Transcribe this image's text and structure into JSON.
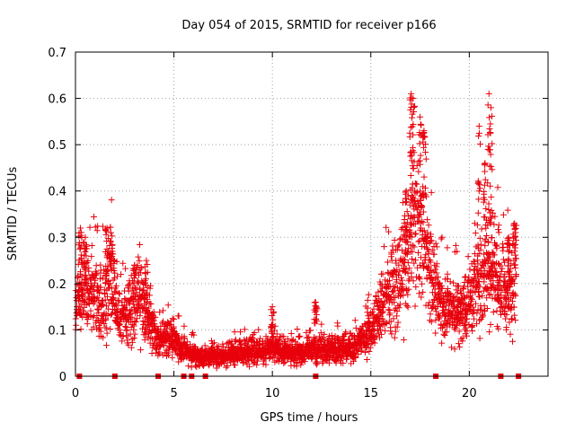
{
  "chart_data": {
    "type": "scatter",
    "title": "Day 054 of 2015, SRMTID for receiver p166",
    "xlabel": "GPS time / hours",
    "ylabel": "SRMTID / TECUs",
    "xlim": [
      0,
      24
    ],
    "ylim": [
      0,
      0.7
    ],
    "xticks": [
      0,
      5,
      10,
      15,
      20
    ],
    "xtick_labels": [
      "0",
      "5",
      "10",
      "15",
      "20"
    ],
    "yticks": [
      0,
      0.1,
      0.2,
      0.3,
      0.4,
      0.5,
      0.6,
      0.7
    ],
    "ytick_labels": [
      "0",
      "0.1",
      "0.2",
      "0.3",
      "0.4",
      "0.5",
      "0.6",
      "0.7"
    ],
    "grid": true,
    "marker": "+",
    "color": "#e8000b",
    "series": [
      {
        "name": "SRMTID",
        "profile": [
          [
            0.0,
            0.14
          ],
          [
            0.3,
            0.18
          ],
          [
            0.6,
            0.2
          ],
          [
            1.0,
            0.17
          ],
          [
            1.5,
            0.16
          ],
          [
            1.8,
            0.22
          ],
          [
            2.2,
            0.12
          ],
          [
            2.8,
            0.14
          ],
          [
            3.2,
            0.18
          ],
          [
            3.6,
            0.13
          ],
          [
            4.2,
            0.08
          ],
          [
            4.8,
            0.09
          ],
          [
            5.2,
            0.07
          ],
          [
            5.8,
            0.05
          ],
          [
            6.5,
            0.04
          ],
          [
            7.5,
            0.045
          ],
          [
            9.0,
            0.055
          ],
          [
            10.0,
            0.06
          ],
          [
            11.0,
            0.05
          ],
          [
            12.0,
            0.055
          ],
          [
            13.0,
            0.06
          ],
          [
            14.0,
            0.06
          ],
          [
            14.8,
            0.09
          ],
          [
            15.3,
            0.12
          ],
          [
            15.8,
            0.17
          ],
          [
            16.3,
            0.2
          ],
          [
            16.8,
            0.24
          ],
          [
            17.1,
            0.33
          ],
          [
            17.4,
            0.32
          ],
          [
            17.7,
            0.3
          ],
          [
            18.0,
            0.24
          ],
          [
            18.5,
            0.16
          ],
          [
            19.0,
            0.15
          ],
          [
            19.5,
            0.14
          ],
          [
            20.0,
            0.16
          ],
          [
            20.5,
            0.2
          ],
          [
            20.9,
            0.24
          ],
          [
            21.3,
            0.22
          ],
          [
            21.8,
            0.18
          ],
          [
            22.4,
            0.2
          ]
        ],
        "peaks": [
          [
            0.25,
            0.32
          ],
          [
            0.5,
            0.3
          ],
          [
            1.6,
            0.32
          ],
          [
            1.8,
            0.31
          ],
          [
            3.0,
            0.24
          ],
          [
            3.6,
            0.25
          ],
          [
            10.0,
            0.15
          ],
          [
            12.2,
            0.16
          ],
          [
            17.05,
            0.61
          ],
          [
            17.15,
            0.6
          ],
          [
            17.5,
            0.56
          ],
          [
            17.7,
            0.53
          ],
          [
            16.8,
            0.4
          ],
          [
            20.5,
            0.54
          ],
          [
            20.8,
            0.46
          ],
          [
            21.0,
            0.61
          ],
          [
            21.1,
            0.58
          ],
          [
            22.3,
            0.33
          ],
          [
            22.0,
            0.3
          ]
        ]
      }
    ],
    "gap_markers": [
      0.2,
      2.0,
      4.2,
      5.5,
      5.9,
      6.6,
      12.2,
      18.3,
      21.6,
      22.5
    ]
  }
}
